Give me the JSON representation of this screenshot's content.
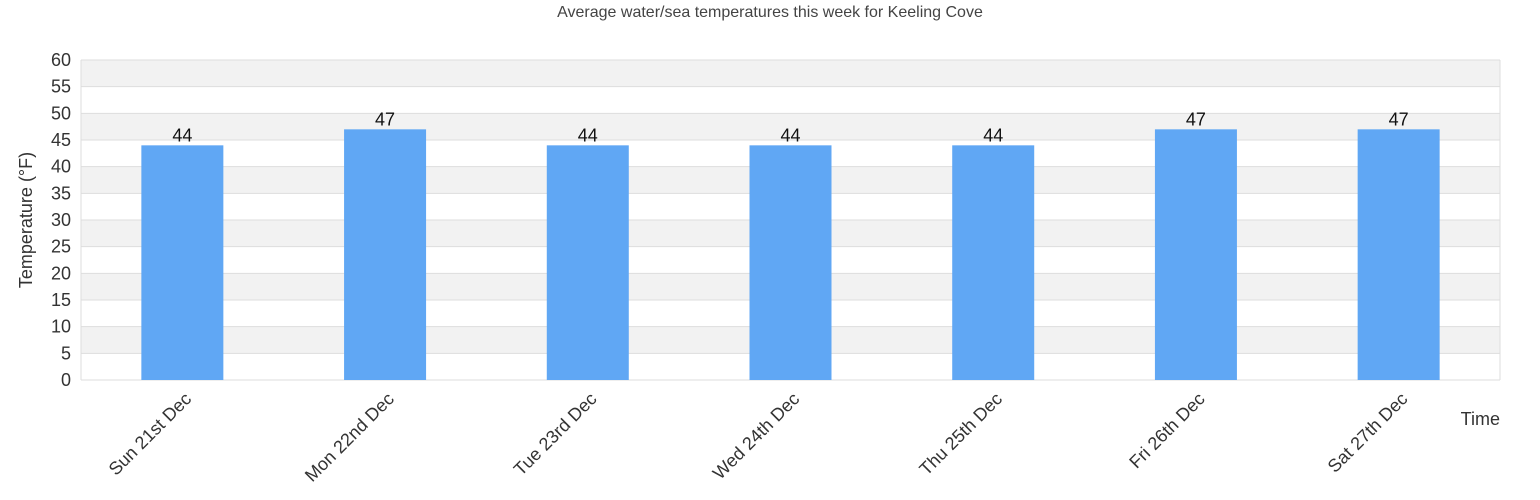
{
  "chart_data": {
    "type": "bar",
    "title": "Average water/sea temperatures this week for Keeling Cove",
    "xlabel": "Time",
    "ylabel": "Temperature (°F)",
    "categories": [
      "Sun 21st Dec",
      "Mon 22nd Dec",
      "Tue 23rd Dec",
      "Wed 24th Dec",
      "Thu 25th Dec",
      "Fri 26th Dec",
      "Sat 27th Dec"
    ],
    "values": [
      44,
      47,
      44,
      44,
      44,
      47,
      47
    ],
    "ylim": [
      0,
      60
    ],
    "yticks": [
      0,
      5,
      10,
      15,
      20,
      25,
      30,
      35,
      40,
      45,
      50,
      55,
      60
    ],
    "grid": true,
    "legend": null,
    "colors": {
      "bar": "#60a7f4",
      "band": "#f2f2f2",
      "grid": "#dddddd"
    }
  }
}
